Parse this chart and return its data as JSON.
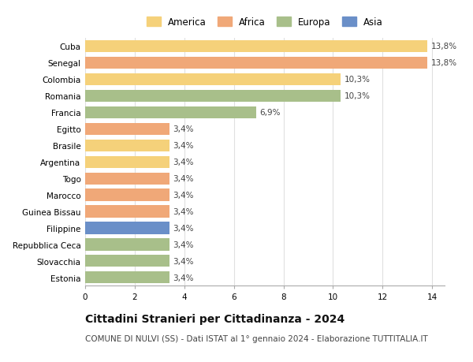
{
  "countries": [
    "Cuba",
    "Senegal",
    "Colombia",
    "Romania",
    "Francia",
    "Egitto",
    "Brasile",
    "Argentina",
    "Togo",
    "Marocco",
    "Guinea Bissau",
    "Filippine",
    "Repubblica Ceca",
    "Slovacchia",
    "Estonia"
  ],
  "values": [
    13.8,
    13.8,
    10.3,
    10.3,
    6.9,
    3.4,
    3.4,
    3.4,
    3.4,
    3.4,
    3.4,
    3.4,
    3.4,
    3.4,
    3.4
  ],
  "labels": [
    "13,8%",
    "13,8%",
    "10,3%",
    "10,3%",
    "6,9%",
    "3,4%",
    "3,4%",
    "3,4%",
    "3,4%",
    "3,4%",
    "3,4%",
    "3,4%",
    "3,4%",
    "3,4%",
    "3,4%"
  ],
  "continents": [
    "America",
    "Africa",
    "America",
    "Europa",
    "Europa",
    "Africa",
    "America",
    "America",
    "Africa",
    "Africa",
    "Africa",
    "Asia",
    "Europa",
    "Europa",
    "Europa"
  ],
  "colors": {
    "America": "#F5D17A",
    "Africa": "#F0A878",
    "Europa": "#A8BF8A",
    "Asia": "#6A8FC8"
  },
  "xlim": [
    0,
    14.5
  ],
  "xticks": [
    0,
    2,
    4,
    6,
    8,
    10,
    12,
    14
  ],
  "title": "Cittadini Stranieri per Cittadinanza - 2024",
  "subtitle": "COMUNE DI NULVI (SS) - Dati ISTAT al 1° gennaio 2024 - Elaborazione TUTTITALIA.IT",
  "background_color": "#ffffff",
  "grid_color": "#e0e0e0",
  "bar_height": 0.72,
  "title_fontsize": 10,
  "subtitle_fontsize": 7.5,
  "label_fontsize": 7.5,
  "ytick_fontsize": 7.5,
  "xtick_fontsize": 7.5,
  "legend_fontsize": 8.5
}
